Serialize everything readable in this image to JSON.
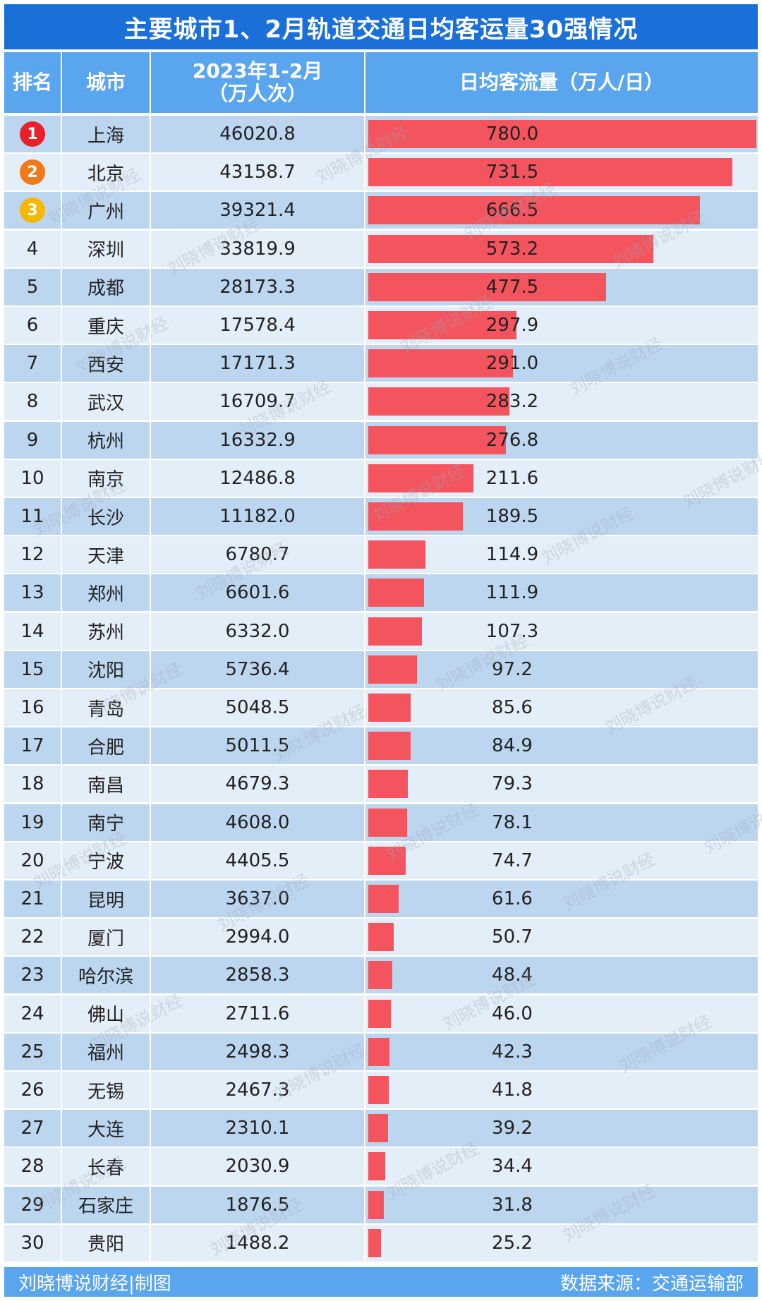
{
  "title": "主要城市1、2月轨道交通日均客运量30强情况",
  "headers": {
    "rank": "排名",
    "city": "城市",
    "total_line1": "2023年1-2月",
    "total_line2": "（万人次）",
    "daily": "日均客流量（万人/日）"
  },
  "footer": {
    "left": "刘晓博说财经|制图",
    "right": "数据来源：交通运输部"
  },
  "watermark_text": "刘晓博说财经",
  "colors": {
    "title_bg": "#1a6fd8",
    "header_bg": "#5aa6ee",
    "row_alt": "#bcd6f0",
    "row_plain": "#e4eef8",
    "bar": "#f4545e",
    "rank1": "#e8202a",
    "rank2": "#f07a1a",
    "rank3": "#f5b800"
  },
  "chart_data": {
    "type": "bar",
    "title": "主要城市1、2月轨道交通日均客运量30强情况",
    "columns": [
      "排名",
      "城市",
      "2023年1-2月（万人次）",
      "日均客流量（万人/日）"
    ],
    "rows": [
      {
        "rank": "1",
        "city": "上海",
        "total": "46020.8",
        "daily": 780.0,
        "daily_label": "780.0"
      },
      {
        "rank": "2",
        "city": "北京",
        "total": "43158.7",
        "daily": 731.5,
        "daily_label": "731.5"
      },
      {
        "rank": "3",
        "city": "广州",
        "total": "39321.4",
        "daily": 666.5,
        "daily_label": "666.5"
      },
      {
        "rank": "4",
        "city": "深圳",
        "total": "33819.9",
        "daily": 573.2,
        "daily_label": "573.2"
      },
      {
        "rank": "5",
        "city": "成都",
        "total": "28173.3",
        "daily": 477.5,
        "daily_label": "477.5"
      },
      {
        "rank": "6",
        "city": "重庆",
        "total": "17578.4",
        "daily": 297.9,
        "daily_label": "297.9"
      },
      {
        "rank": "7",
        "city": "西安",
        "total": "17171.3",
        "daily": 291.0,
        "daily_label": "291.0"
      },
      {
        "rank": "8",
        "city": "武汉",
        "total": "16709.7",
        "daily": 283.2,
        "daily_label": "283.2"
      },
      {
        "rank": "9",
        "city": "杭州",
        "total": "16332.9",
        "daily": 276.8,
        "daily_label": "276.8"
      },
      {
        "rank": "10",
        "city": "南京",
        "total": "12486.8",
        "daily": 211.6,
        "daily_label": "211.6"
      },
      {
        "rank": "11",
        "city": "长沙",
        "total": "11182.0",
        "daily": 189.5,
        "daily_label": "189.5"
      },
      {
        "rank": "12",
        "city": "天津",
        "total": "6780.7",
        "daily": 114.9,
        "daily_label": "114.9"
      },
      {
        "rank": "13",
        "city": "郑州",
        "total": "6601.6",
        "daily": 111.9,
        "daily_label": "111.9"
      },
      {
        "rank": "14",
        "city": "苏州",
        "total": "6332.0",
        "daily": 107.3,
        "daily_label": "107.3"
      },
      {
        "rank": "15",
        "city": "沈阳",
        "total": "5736.4",
        "daily": 97.2,
        "daily_label": "97.2"
      },
      {
        "rank": "16",
        "city": "青岛",
        "total": "5048.5",
        "daily": 85.6,
        "daily_label": "85.6"
      },
      {
        "rank": "17",
        "city": "合肥",
        "total": "5011.5",
        "daily": 84.9,
        "daily_label": "84.9"
      },
      {
        "rank": "18",
        "city": "南昌",
        "total": "4679.3",
        "daily": 79.3,
        "daily_label": "79.3"
      },
      {
        "rank": "19",
        "city": "南宁",
        "total": "4608.0",
        "daily": 78.1,
        "daily_label": "78.1"
      },
      {
        "rank": "20",
        "city": "宁波",
        "total": "4405.5",
        "daily": 74.7,
        "daily_label": "74.7"
      },
      {
        "rank": "21",
        "city": "昆明",
        "total": "3637.0",
        "daily": 61.6,
        "daily_label": "61.6"
      },
      {
        "rank": "22",
        "city": "厦门",
        "total": "2994.0",
        "daily": 50.7,
        "daily_label": "50.7"
      },
      {
        "rank": "23",
        "city": "哈尔滨",
        "total": "2858.3",
        "daily": 48.4,
        "daily_label": "48.4"
      },
      {
        "rank": "24",
        "city": "佛山",
        "total": "2711.6",
        "daily": 46.0,
        "daily_label": "46.0"
      },
      {
        "rank": "25",
        "city": "福州",
        "total": "2498.3",
        "daily": 42.3,
        "daily_label": "42.3"
      },
      {
        "rank": "26",
        "city": "无锡",
        "total": "2467.3",
        "daily": 41.8,
        "daily_label": "41.8"
      },
      {
        "rank": "27",
        "city": "大连",
        "total": "2310.1",
        "daily": 39.2,
        "daily_label": "39.2"
      },
      {
        "rank": "28",
        "city": "长春",
        "total": "2030.9",
        "daily": 34.4,
        "daily_label": "34.4"
      },
      {
        "rank": "29",
        "city": "石家庄",
        "total": "1876.5",
        "daily": 31.8,
        "daily_label": "31.8"
      },
      {
        "rank": "30",
        "city": "贵阳",
        "total": "1488.2",
        "daily": 25.2,
        "daily_label": "25.2"
      }
    ],
    "xlim": [
      0,
      780
    ]
  }
}
